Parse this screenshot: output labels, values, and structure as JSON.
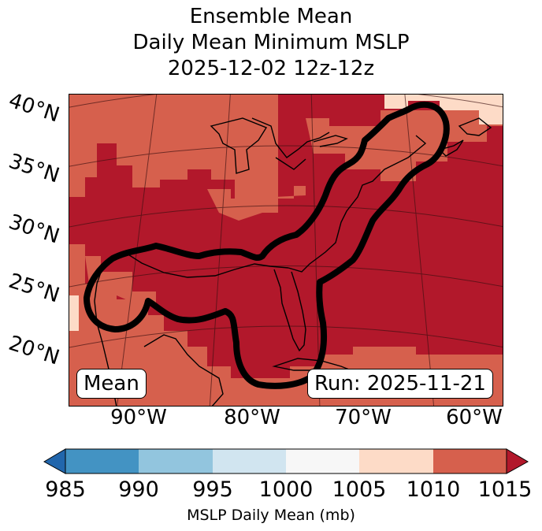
{
  "title": {
    "line1": "Ensemble Mean",
    "line2": "Daily Mean Minimum MSLP",
    "line3": "2025-12-02 12z-12z"
  },
  "map": {
    "lat_labels": [
      "40°N",
      "35°N",
      "30°N",
      "25°N",
      "20°N"
    ],
    "lon_labels": [
      "90°W",
      "80°W",
      "70°W",
      "60°W"
    ],
    "left_box": "Mean",
    "right_box": "Run: 2025-11-21",
    "colors": {
      "c_1005_1010": "#fddbc7",
      "c_1010_1015": "#d6604d",
      "c_above_1015": "#b2182b",
      "contour": "#000000",
      "coastline": "#000000",
      "gridline": "#3a1010"
    }
  },
  "colorbar": {
    "ticks": [
      "985",
      "990",
      "995",
      "1000",
      "1005",
      "1010",
      "1015"
    ],
    "label": "MSLP Daily Mean (mb)",
    "bins": [
      {
        "range": "<985",
        "color": "#2166ac"
      },
      {
        "range": "985-990",
        "color": "#4393c3"
      },
      {
        "range": "990-995",
        "color": "#92c5de"
      },
      {
        "range": "995-1000",
        "color": "#d1e5f0"
      },
      {
        "range": "1000-1005",
        "color": "#f7f7f7"
      },
      {
        "range": "1005-1010",
        "color": "#fddbc7"
      },
      {
        "range": "1010-1015",
        "color": "#d6604d"
      },
      {
        "range": ">1015",
        "color": "#b2182b"
      }
    ]
  }
}
